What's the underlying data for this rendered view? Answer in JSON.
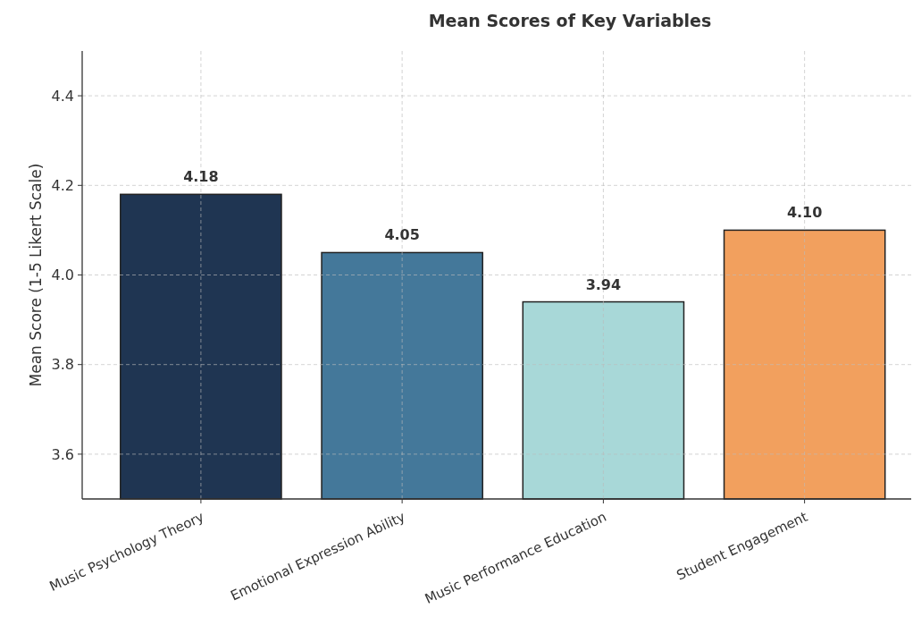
{
  "chart_data": {
    "type": "bar",
    "title": "Mean Scores of Key Variables",
    "ylabel": "Mean Score (1-5 Likert Scale)",
    "categories": [
      "Music Psychology Theory",
      "Emotional Expression Ability",
      "Music Performance Education",
      "Student Engagement"
    ],
    "values": [
      4.18,
      4.05,
      3.94,
      4.1
    ],
    "value_labels": [
      "4.18",
      "4.05",
      "3.94",
      "4.10"
    ],
    "colors": [
      "#1f3552",
      "#44789a",
      "#a8d8d8",
      "#f2a05e"
    ],
    "ylim": [
      3.5,
      4.5
    ],
    "yticks": [
      {
        "value": 3.6,
        "label": "3.6"
      },
      {
        "value": 3.8,
        "label": "3.8"
      },
      {
        "value": 4.0,
        "label": "4.0"
      },
      {
        "value": 4.2,
        "label": "4.2"
      },
      {
        "value": 4.4,
        "label": "4.4"
      }
    ],
    "grid": true
  }
}
